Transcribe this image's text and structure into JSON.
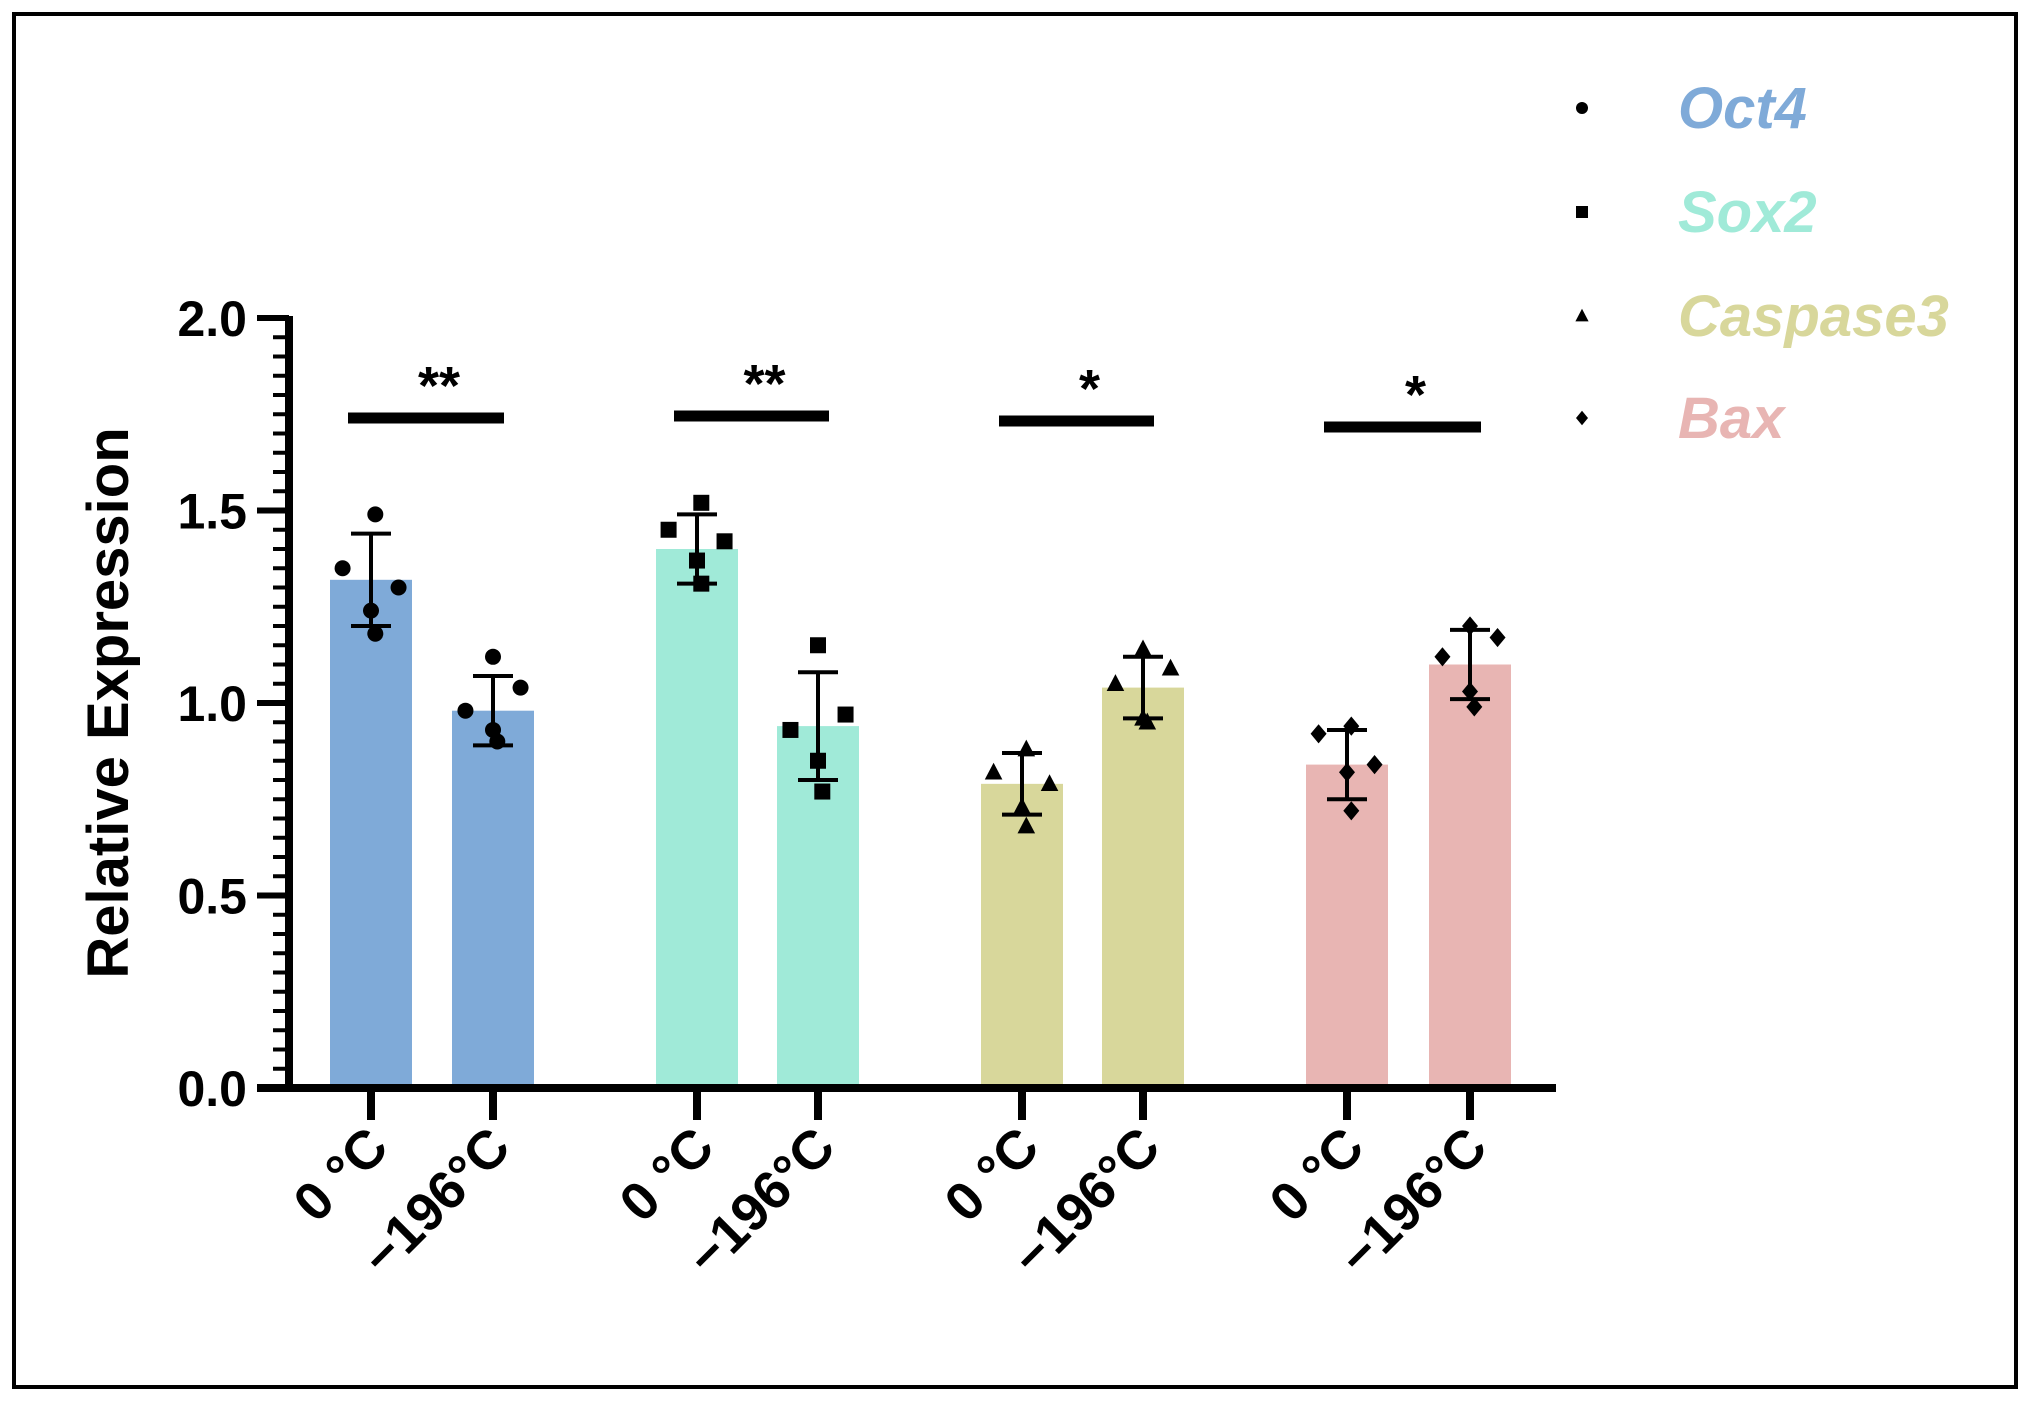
{
  "chart_data": {
    "type": "bar",
    "ylabel": "Relative Expression",
    "ylim": [
      0,
      2.0
    ],
    "yticks": [
      "0.0",
      "0.5",
      "1.0",
      "1.5",
      "2.0"
    ],
    "categories": [
      "0 °C",
      "−196°C"
    ],
    "groups": [
      {
        "name": "Oct4",
        "color": "#7faad8",
        "marker": "circle",
        "bars": [
          {
            "category": "0 °C",
            "value": 1.32,
            "error": 0.12,
            "points": [
              1.49,
              1.35,
              1.3,
              1.24,
              1.18
            ]
          },
          {
            "category": "−196°C",
            "value": 0.98,
            "error": 0.09,
            "points": [
              1.12,
              1.04,
              0.98,
              0.93,
              0.9
            ]
          }
        ],
        "significance": "**"
      },
      {
        "name": "Sox2",
        "color": "#a0ead8",
        "marker": "square",
        "bars": [
          {
            "category": "0 °C",
            "value": 1.4,
            "error": 0.09,
            "points": [
              1.52,
              1.45,
              1.42,
              1.37,
              1.31
            ]
          },
          {
            "category": "−196°C",
            "value": 0.94,
            "error": 0.14,
            "points": [
              1.15,
              0.97,
              0.93,
              0.85,
              0.77
            ]
          }
        ],
        "significance": "**"
      },
      {
        "name": "Caspase3",
        "color": "#d8d79b",
        "marker": "triangle",
        "bars": [
          {
            "category": "0 °C",
            "value": 0.79,
            "error": 0.08,
            "points": [
              0.88,
              0.82,
              0.79,
              0.73,
              0.68
            ]
          },
          {
            "category": "−196°C",
            "value": 1.04,
            "error": 0.08,
            "points": [
              1.14,
              1.09,
              1.05,
              0.96,
              0.95
            ]
          }
        ],
        "significance": "*"
      },
      {
        "name": "Bax",
        "color": "#e8b5b3",
        "marker": "diamond",
        "bars": [
          {
            "category": "0 °C",
            "value": 0.84,
            "error": 0.09,
            "points": [
              0.94,
              0.92,
              0.84,
              0.82,
              0.72
            ]
          },
          {
            "category": "−196°C",
            "value": 1.1,
            "error": 0.09,
            "points": [
              1.2,
              1.17,
              1.12,
              1.03,
              0.99
            ]
          }
        ],
        "significance": "*"
      }
    ],
    "legend_position": "top-right",
    "grid": false
  }
}
